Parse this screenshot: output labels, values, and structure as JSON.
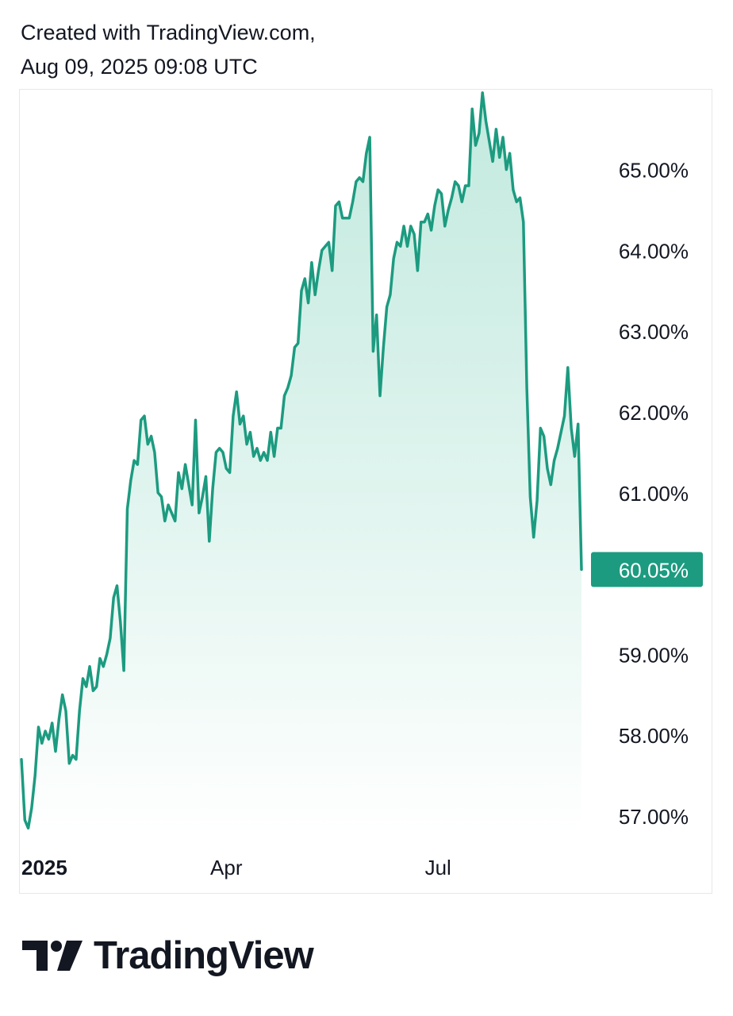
{
  "header": {
    "line1": "Created with TradingView.com,",
    "line2": "Aug 09, 2025 09:08 UTC"
  },
  "brand": {
    "name": "TradingView",
    "logo_icon": "tradingview-logo-icon"
  },
  "colors": {
    "line": "#1c9b80",
    "fill_top": "#b8e6d9",
    "fill_bottom": "#ffffff",
    "badge": "#1c9b80",
    "text": "#131722"
  },
  "chart_data": {
    "type": "area",
    "title": "",
    "xlabel": "",
    "ylabel": "",
    "ylim": [
      56.8,
      66.0
    ],
    "y_ticks": [
      "57.00%",
      "58.00%",
      "59.00%",
      "61.00%",
      "62.00%",
      "63.00%",
      "64.00%",
      "65.00%"
    ],
    "y_tick_values": [
      57,
      58,
      59,
      61,
      62,
      63,
      64,
      65
    ],
    "x_ticks": [
      {
        "label": "2025",
        "index": 0,
        "bold": true
      },
      {
        "label": "Apr",
        "index": 60
      },
      {
        "label": "Jul",
        "index": 122
      }
    ],
    "last_value_label": "60.05%",
    "last_value": 60.05,
    "grid": false,
    "series": [
      {
        "values": [
          57.7,
          56.95,
          56.85,
          57.1,
          57.5,
          58.1,
          57.9,
          58.05,
          57.95,
          58.15,
          57.8,
          58.2,
          58.5,
          58.3,
          57.65,
          57.75,
          57.7,
          58.3,
          58.7,
          58.6,
          58.85,
          58.55,
          58.6,
          58.95,
          58.85,
          59.0,
          59.2,
          59.7,
          59.85,
          59.4,
          58.8,
          60.8,
          61.15,
          61.4,
          61.35,
          61.9,
          61.95,
          61.6,
          61.7,
          61.5,
          61.0,
          60.95,
          60.65,
          60.85,
          60.75,
          60.65,
          61.25,
          61.05,
          61.35,
          61.1,
          60.85,
          61.9,
          60.75,
          60.95,
          61.2,
          60.4,
          61.05,
          61.5,
          61.55,
          61.5,
          61.3,
          61.25,
          61.95,
          62.25,
          61.85,
          61.95,
          61.6,
          61.75,
          61.45,
          61.55,
          61.4,
          61.5,
          61.4,
          61.75,
          61.45,
          61.8,
          61.8,
          62.2,
          62.3,
          62.45,
          62.8,
          62.85,
          63.5,
          63.65,
          63.35,
          63.85,
          63.45,
          63.75,
          64.0,
          64.05,
          64.1,
          63.75,
          64.55,
          64.6,
          64.4,
          64.4,
          64.4,
          64.6,
          64.85,
          64.9,
          64.85,
          65.2,
          65.4,
          62.75,
          63.2,
          62.2,
          62.8,
          63.3,
          63.45,
          63.9,
          64.1,
          64.05,
          64.3,
          64.05,
          64.3,
          64.2,
          63.75,
          64.35,
          64.35,
          64.45,
          64.25,
          64.55,
          64.75,
          64.7,
          64.3,
          64.5,
          64.65,
          64.85,
          64.8,
          64.6,
          64.8,
          64.8,
          65.75,
          65.3,
          65.45,
          65.95,
          65.6,
          65.35,
          65.1,
          65.5,
          65.15,
          65.4,
          65.0,
          65.2,
          64.75,
          64.6,
          64.65,
          64.35,
          62.3,
          60.95,
          60.45,
          60.9,
          61.8,
          61.7,
          61.3,
          61.1,
          61.4,
          61.55,
          61.75,
          61.95,
          62.55,
          61.8,
          61.45,
          61.85,
          60.05
        ]
      }
    ]
  }
}
